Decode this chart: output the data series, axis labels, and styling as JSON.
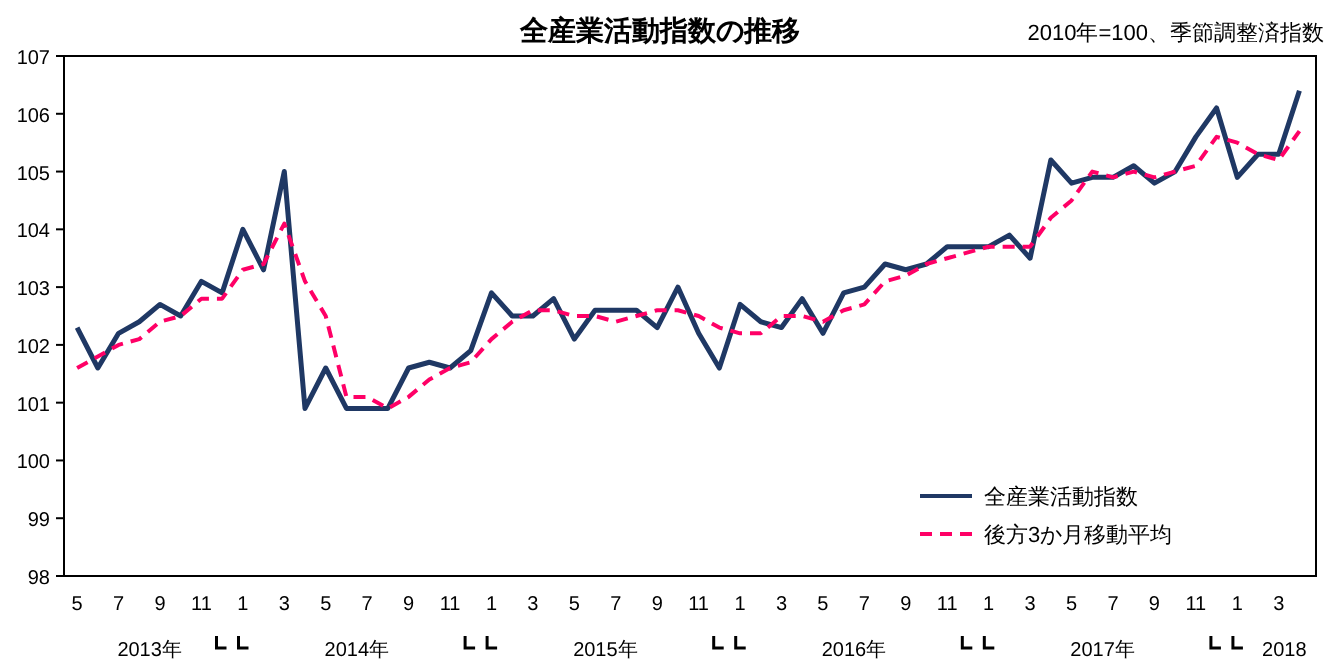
{
  "chart_data": {
    "type": "line",
    "title": "全産業活動指数の推移",
    "subtitle": "2010年=100、季節調整済指数",
    "x": [
      "2013-05",
      "2013-06",
      "2013-07",
      "2013-08",
      "2013-09",
      "2013-10",
      "2013-11",
      "2013-12",
      "2014-01",
      "2014-02",
      "2014-03",
      "2014-04",
      "2014-05",
      "2014-06",
      "2014-07",
      "2014-08",
      "2014-09",
      "2014-10",
      "2014-11",
      "2014-12",
      "2015-01",
      "2015-02",
      "2015-03",
      "2015-04",
      "2015-05",
      "2015-06",
      "2015-07",
      "2015-08",
      "2015-09",
      "2015-10",
      "2015-11",
      "2015-12",
      "2016-01",
      "2016-02",
      "2016-03",
      "2016-04",
      "2016-05",
      "2016-06",
      "2016-07",
      "2016-08",
      "2016-09",
      "2016-10",
      "2016-11",
      "2016-12",
      "2017-01",
      "2017-02",
      "2017-03",
      "2017-04",
      "2017-05",
      "2017-06",
      "2017-07",
      "2017-08",
      "2017-09",
      "2017-10",
      "2017-11",
      "2017-12",
      "2018-01",
      "2018-02",
      "2018-03",
      "2018-04"
    ],
    "series": [
      {
        "name": "全産業活動指数",
        "color": "#1f3864",
        "line_style": "solid",
        "values": [
          102.3,
          101.6,
          102.2,
          102.4,
          102.7,
          102.5,
          103.1,
          102.9,
          104.0,
          103.3,
          105.0,
          100.9,
          101.6,
          100.9,
          100.9,
          100.9,
          101.6,
          101.7,
          101.6,
          101.9,
          102.9,
          102.5,
          102.5,
          102.8,
          102.1,
          102.6,
          102.6,
          102.6,
          102.3,
          103.0,
          102.2,
          101.6,
          102.7,
          102.4,
          102.3,
          102.8,
          102.2,
          102.9,
          103.0,
          103.4,
          103.3,
          103.4,
          103.7,
          103.7,
          103.7,
          103.9,
          103.5,
          105.2,
          104.8,
          104.9,
          104.9,
          105.1,
          104.8,
          105.0,
          105.6,
          106.1,
          104.9,
          105.3,
          105.3,
          106.4
        ]
      },
      {
        "name": "後方3か月移動平均",
        "color": "#ff0066",
        "line_style": "dashed",
        "values": [
          101.6,
          101.8,
          102.0,
          102.1,
          102.4,
          102.5,
          102.8,
          102.8,
          103.3,
          103.4,
          104.1,
          103.1,
          102.5,
          101.1,
          101.1,
          100.9,
          101.1,
          101.4,
          101.6,
          101.7,
          102.1,
          102.4,
          102.6,
          102.6,
          102.5,
          102.5,
          102.4,
          102.5,
          102.6,
          102.6,
          102.5,
          102.3,
          102.2,
          102.2,
          102.5,
          102.5,
          102.4,
          102.6,
          102.7,
          103.1,
          103.2,
          103.4,
          103.5,
          103.6,
          103.7,
          103.7,
          103.7,
          104.2,
          104.5,
          105.0,
          104.9,
          105.0,
          104.9,
          105.0,
          105.1,
          105.6,
          105.5,
          105.3,
          105.2,
          105.7
        ]
      }
    ],
    "xlim": [
      "2013-04-12",
      "2018-04-25"
    ],
    "xticks": [
      {
        "value": "2013-05",
        "label": "5"
      },
      {
        "value": "2013-07",
        "label": "7"
      },
      {
        "value": "2013-09",
        "label": "9"
      },
      {
        "value": "2013-11",
        "label": "11"
      },
      {
        "value": "2014-01",
        "label": "1"
      },
      {
        "value": "2014-03",
        "label": "3"
      },
      {
        "value": "2014-05",
        "label": "5"
      },
      {
        "value": "2014-07",
        "label": "7"
      },
      {
        "value": "2014-09",
        "label": "9"
      },
      {
        "value": "2014-11",
        "label": "11"
      },
      {
        "value": "2015-01",
        "label": "1"
      },
      {
        "value": "2015-03",
        "label": "3"
      },
      {
        "value": "2015-05",
        "label": "5"
      },
      {
        "value": "2015-07",
        "label": "7"
      },
      {
        "value": "2015-09",
        "label": "9"
      },
      {
        "value": "2015-11",
        "label": "11"
      },
      {
        "value": "2016-01",
        "label": "1"
      },
      {
        "value": "2016-03",
        "label": "3"
      },
      {
        "value": "2016-05",
        "label": "5"
      },
      {
        "value": "2016-07",
        "label": "7"
      },
      {
        "value": "2016-09",
        "label": "9"
      },
      {
        "value": "2016-11",
        "label": "11"
      },
      {
        "value": "2017-01",
        "label": "1"
      },
      {
        "value": "2017-03",
        "label": "3"
      },
      {
        "value": "2017-05",
        "label": "5"
      },
      {
        "value": "2017-07",
        "label": "7"
      },
      {
        "value": "2017-09",
        "label": "9"
      },
      {
        "value": "2017-11",
        "label": "11"
      },
      {
        "value": "2018-01",
        "label": "1"
      },
      {
        "value": "2018-03",
        "label": "3"
      }
    ],
    "ylim": [
      98,
      107
    ],
    "yticks": [
      98,
      99,
      100,
      101,
      102,
      103,
      104,
      105,
      106,
      107
    ],
    "annotations": [
      "2013年",
      "2014年",
      "2015年",
      "2016年",
      "2017年",
      "2018"
    ],
    "grid": false,
    "legend": "bottom right",
    "marker": "none"
  }
}
